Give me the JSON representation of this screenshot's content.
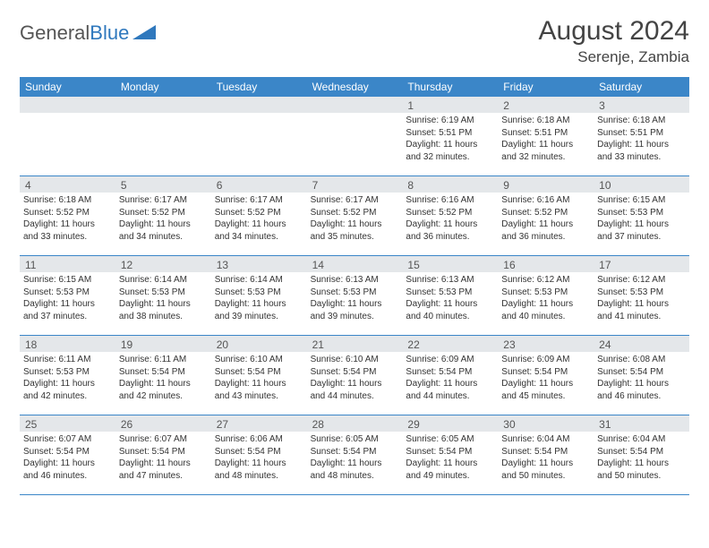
{
  "brand": {
    "text1": "General",
    "text2": "Blue"
  },
  "title": "August 2024",
  "location": "Serenje, Zambia",
  "colors": {
    "header_bg": "#3b86c8",
    "header_text": "#ffffff",
    "daynum_bg": "#e4e7ea",
    "row_border": "#3b86c8",
    "body_text": "#333333",
    "brand_gray": "#555555",
    "brand_blue": "#2f78bd",
    "page_bg": "#ffffff"
  },
  "weekdays": [
    "Sunday",
    "Monday",
    "Tuesday",
    "Wednesday",
    "Thursday",
    "Friday",
    "Saturday"
  ],
  "weeks": [
    [
      {
        "n": "",
        "sr": "",
        "ss": "",
        "d1": "",
        "d2": ""
      },
      {
        "n": "",
        "sr": "",
        "ss": "",
        "d1": "",
        "d2": ""
      },
      {
        "n": "",
        "sr": "",
        "ss": "",
        "d1": "",
        "d2": ""
      },
      {
        "n": "",
        "sr": "",
        "ss": "",
        "d1": "",
        "d2": ""
      },
      {
        "n": "1",
        "sr": "Sunrise: 6:19 AM",
        "ss": "Sunset: 5:51 PM",
        "d1": "Daylight: 11 hours",
        "d2": "and 32 minutes."
      },
      {
        "n": "2",
        "sr": "Sunrise: 6:18 AM",
        "ss": "Sunset: 5:51 PM",
        "d1": "Daylight: 11 hours",
        "d2": "and 32 minutes."
      },
      {
        "n": "3",
        "sr": "Sunrise: 6:18 AM",
        "ss": "Sunset: 5:51 PM",
        "d1": "Daylight: 11 hours",
        "d2": "and 33 minutes."
      }
    ],
    [
      {
        "n": "4",
        "sr": "Sunrise: 6:18 AM",
        "ss": "Sunset: 5:52 PM",
        "d1": "Daylight: 11 hours",
        "d2": "and 33 minutes."
      },
      {
        "n": "5",
        "sr": "Sunrise: 6:17 AM",
        "ss": "Sunset: 5:52 PM",
        "d1": "Daylight: 11 hours",
        "d2": "and 34 minutes."
      },
      {
        "n": "6",
        "sr": "Sunrise: 6:17 AM",
        "ss": "Sunset: 5:52 PM",
        "d1": "Daylight: 11 hours",
        "d2": "and 34 minutes."
      },
      {
        "n": "7",
        "sr": "Sunrise: 6:17 AM",
        "ss": "Sunset: 5:52 PM",
        "d1": "Daylight: 11 hours",
        "d2": "and 35 minutes."
      },
      {
        "n": "8",
        "sr": "Sunrise: 6:16 AM",
        "ss": "Sunset: 5:52 PM",
        "d1": "Daylight: 11 hours",
        "d2": "and 36 minutes."
      },
      {
        "n": "9",
        "sr": "Sunrise: 6:16 AM",
        "ss": "Sunset: 5:52 PM",
        "d1": "Daylight: 11 hours",
        "d2": "and 36 minutes."
      },
      {
        "n": "10",
        "sr": "Sunrise: 6:15 AM",
        "ss": "Sunset: 5:53 PM",
        "d1": "Daylight: 11 hours",
        "d2": "and 37 minutes."
      }
    ],
    [
      {
        "n": "11",
        "sr": "Sunrise: 6:15 AM",
        "ss": "Sunset: 5:53 PM",
        "d1": "Daylight: 11 hours",
        "d2": "and 37 minutes."
      },
      {
        "n": "12",
        "sr": "Sunrise: 6:14 AM",
        "ss": "Sunset: 5:53 PM",
        "d1": "Daylight: 11 hours",
        "d2": "and 38 minutes."
      },
      {
        "n": "13",
        "sr": "Sunrise: 6:14 AM",
        "ss": "Sunset: 5:53 PM",
        "d1": "Daylight: 11 hours",
        "d2": "and 39 minutes."
      },
      {
        "n": "14",
        "sr": "Sunrise: 6:13 AM",
        "ss": "Sunset: 5:53 PM",
        "d1": "Daylight: 11 hours",
        "d2": "and 39 minutes."
      },
      {
        "n": "15",
        "sr": "Sunrise: 6:13 AM",
        "ss": "Sunset: 5:53 PM",
        "d1": "Daylight: 11 hours",
        "d2": "and 40 minutes."
      },
      {
        "n": "16",
        "sr": "Sunrise: 6:12 AM",
        "ss": "Sunset: 5:53 PM",
        "d1": "Daylight: 11 hours",
        "d2": "and 40 minutes."
      },
      {
        "n": "17",
        "sr": "Sunrise: 6:12 AM",
        "ss": "Sunset: 5:53 PM",
        "d1": "Daylight: 11 hours",
        "d2": "and 41 minutes."
      }
    ],
    [
      {
        "n": "18",
        "sr": "Sunrise: 6:11 AM",
        "ss": "Sunset: 5:53 PM",
        "d1": "Daylight: 11 hours",
        "d2": "and 42 minutes."
      },
      {
        "n": "19",
        "sr": "Sunrise: 6:11 AM",
        "ss": "Sunset: 5:54 PM",
        "d1": "Daylight: 11 hours",
        "d2": "and 42 minutes."
      },
      {
        "n": "20",
        "sr": "Sunrise: 6:10 AM",
        "ss": "Sunset: 5:54 PM",
        "d1": "Daylight: 11 hours",
        "d2": "and 43 minutes."
      },
      {
        "n": "21",
        "sr": "Sunrise: 6:10 AM",
        "ss": "Sunset: 5:54 PM",
        "d1": "Daylight: 11 hours",
        "d2": "and 44 minutes."
      },
      {
        "n": "22",
        "sr": "Sunrise: 6:09 AM",
        "ss": "Sunset: 5:54 PM",
        "d1": "Daylight: 11 hours",
        "d2": "and 44 minutes."
      },
      {
        "n": "23",
        "sr": "Sunrise: 6:09 AM",
        "ss": "Sunset: 5:54 PM",
        "d1": "Daylight: 11 hours",
        "d2": "and 45 minutes."
      },
      {
        "n": "24",
        "sr": "Sunrise: 6:08 AM",
        "ss": "Sunset: 5:54 PM",
        "d1": "Daylight: 11 hours",
        "d2": "and 46 minutes."
      }
    ],
    [
      {
        "n": "25",
        "sr": "Sunrise: 6:07 AM",
        "ss": "Sunset: 5:54 PM",
        "d1": "Daylight: 11 hours",
        "d2": "and 46 minutes."
      },
      {
        "n": "26",
        "sr": "Sunrise: 6:07 AM",
        "ss": "Sunset: 5:54 PM",
        "d1": "Daylight: 11 hours",
        "d2": "and 47 minutes."
      },
      {
        "n": "27",
        "sr": "Sunrise: 6:06 AM",
        "ss": "Sunset: 5:54 PM",
        "d1": "Daylight: 11 hours",
        "d2": "and 48 minutes."
      },
      {
        "n": "28",
        "sr": "Sunrise: 6:05 AM",
        "ss": "Sunset: 5:54 PM",
        "d1": "Daylight: 11 hours",
        "d2": "and 48 minutes."
      },
      {
        "n": "29",
        "sr": "Sunrise: 6:05 AM",
        "ss": "Sunset: 5:54 PM",
        "d1": "Daylight: 11 hours",
        "d2": "and 49 minutes."
      },
      {
        "n": "30",
        "sr": "Sunrise: 6:04 AM",
        "ss": "Sunset: 5:54 PM",
        "d1": "Daylight: 11 hours",
        "d2": "and 50 minutes."
      },
      {
        "n": "31",
        "sr": "Sunrise: 6:04 AM",
        "ss": "Sunset: 5:54 PM",
        "d1": "Daylight: 11 hours",
        "d2": "and 50 minutes."
      }
    ]
  ]
}
